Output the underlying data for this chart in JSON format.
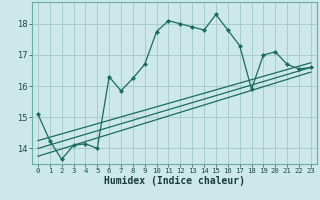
{
  "title": "",
  "xlabel": "Humidex (Indice chaleur)",
  "bg_color": "#cce8e8",
  "grid_color": "#aacccc",
  "line_color": "#1a6b5e",
  "x_ticks": [
    0,
    1,
    2,
    3,
    4,
    5,
    6,
    7,
    8,
    9,
    10,
    11,
    12,
    13,
    14,
    15,
    16,
    17,
    18,
    19,
    20,
    21,
    22,
    23
  ],
  "y_ticks": [
    14,
    15,
    16,
    17,
    18
  ],
  "ylim": [
    13.5,
    18.7
  ],
  "xlim": [
    -0.5,
    23.5
  ],
  "series1_x": [
    0,
    1,
    2,
    3,
    4,
    5,
    6,
    7,
    8,
    9,
    10,
    11,
    12,
    13,
    14,
    15,
    16,
    17,
    18,
    19,
    20,
    21,
    22,
    23
  ],
  "series1_y": [
    15.1,
    14.25,
    13.65,
    14.1,
    14.15,
    14.0,
    16.3,
    15.85,
    16.25,
    16.7,
    17.75,
    18.1,
    18.0,
    17.9,
    17.8,
    18.3,
    17.8,
    17.3,
    15.9,
    17.0,
    17.1,
    16.7,
    16.55,
    16.6
  ],
  "line1_x": [
    0,
    23
  ],
  "line1_y": [
    13.75,
    16.45
  ],
  "line2_x": [
    0,
    23
  ],
  "line2_y": [
    14.0,
    16.6
  ],
  "line3_x": [
    0,
    23
  ],
  "line3_y": [
    14.25,
    16.75
  ]
}
